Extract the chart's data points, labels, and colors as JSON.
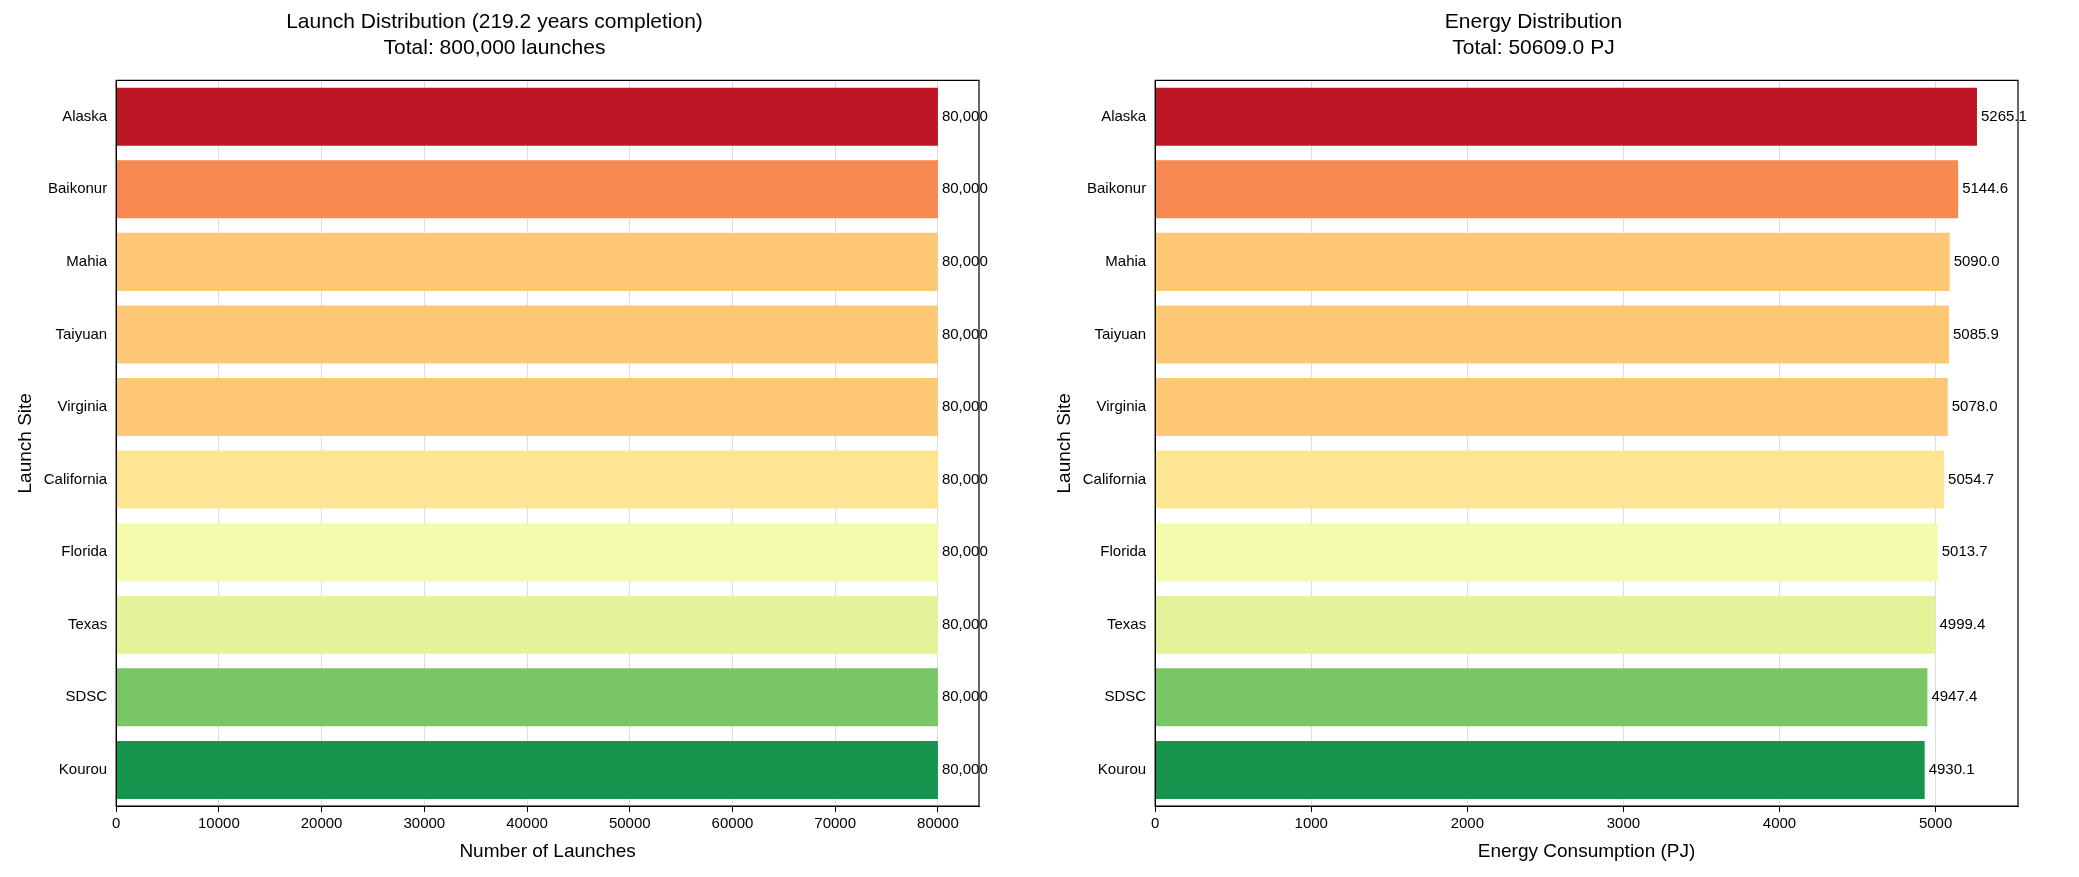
{
  "chart_data": [
    {
      "type": "bar",
      "orientation": "horizontal",
      "title": "Launch Distribution (219.2 years completion)\nTotal: 800,000 launches",
      "xlabel": "Number of Launches",
      "ylabel": "Launch Site",
      "categories": [
        "Alaska",
        "Baikonur",
        "Mahia",
        "Taiyuan",
        "Virginia",
        "California",
        "Florida",
        "Texas",
        "SDSC",
        "Kourou"
      ],
      "values": [
        80000,
        80000,
        80000,
        80000,
        80000,
        80000,
        80000,
        80000,
        80000,
        80000
      ],
      "colors": [
        "#bd1726",
        "#f88950",
        "#fec877",
        "#fec877",
        "#fec877",
        "#fee593",
        "#f3faad",
        "#e4f29a",
        "#7ac665",
        "#16934d"
      ],
      "value_labels": [
        "80,000",
        "80,000",
        "80,000",
        "80,000",
        "80,000",
        "80,000",
        "80,000",
        "80,000",
        "80,000",
        "80,000"
      ],
      "xlim": [
        0,
        84000
      ],
      "xticks": [
        0,
        10000,
        20000,
        30000,
        40000,
        50000,
        60000,
        70000,
        80000
      ],
      "grid": "x"
    },
    {
      "type": "bar",
      "orientation": "horizontal",
      "title": "Energy Distribution\nTotal: 50609.0 PJ",
      "xlabel": "Energy Consumption (PJ)",
      "ylabel": "Launch Site",
      "categories": [
        "Alaska",
        "Baikonur",
        "Mahia",
        "Taiyuan",
        "Virginia",
        "California",
        "Florida",
        "Texas",
        "SDSC",
        "Kourou"
      ],
      "values": [
        5265.1,
        5144.6,
        5090.0,
        5085.9,
        5078.0,
        5054.7,
        5013.7,
        4999.4,
        4947.4,
        4930.1
      ],
      "colors": [
        "#bd1726",
        "#f88950",
        "#fec877",
        "#fec877",
        "#fec877",
        "#fee593",
        "#f3faad",
        "#e4f29a",
        "#7ac665",
        "#16934d"
      ],
      "value_labels": [
        "5265.1",
        "5144.6",
        "5090.0",
        "5085.9",
        "5078.0",
        "5054.7",
        "5013.7",
        "4999.4",
        "4947.4",
        "4930.1"
      ],
      "xlim": [
        0,
        5528
      ],
      "xticks": [
        0,
        1000,
        2000,
        3000,
        4000,
        5000
      ],
      "grid": "x"
    }
  ]
}
